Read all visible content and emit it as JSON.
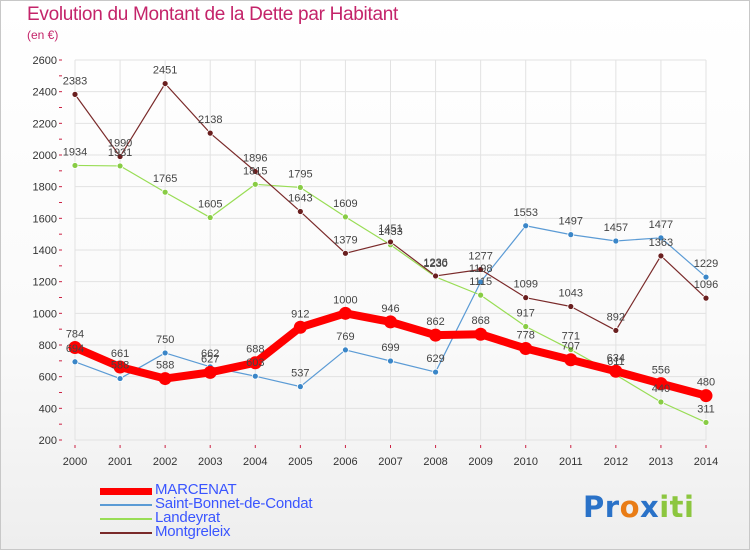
{
  "header": {
    "title": "Evolution du Montant de la Dette par Habitant",
    "subtitle": "(en €)"
  },
  "logo": {
    "parts": [
      "Pr",
      "o",
      "x",
      "iti"
    ]
  },
  "chart_data": {
    "type": "line",
    "title": "Evolution du Montant de la Dette par Habitant",
    "subtitle": "(en €)",
    "xlabel": "",
    "ylabel": "",
    "categories": [
      "2000",
      "2001",
      "2002",
      "2003",
      "2004",
      "2005",
      "2006",
      "2007",
      "2008",
      "2009",
      "2010",
      "2011",
      "2012",
      "2013",
      "2014"
    ],
    "y_ticks": [
      200,
      400,
      600,
      800,
      1000,
      1200,
      1400,
      1600,
      1800,
      2000,
      2200,
      2400,
      2600
    ],
    "ylim": [
      200,
      2600
    ],
    "grid": "horizontal",
    "legend_position": "bottom-left",
    "series": [
      {
        "name": "MARCENAT",
        "color": "#ff0000",
        "values": [
          784,
          661,
          588,
          627,
          688,
          912,
          1000,
          946,
          862,
          868,
          778,
          707,
          634,
          556,
          480
        ]
      },
      {
        "name": "Saint-Bonnet-de-Condat",
        "color": "#5b9bd5",
        "values": [
          694,
          588,
          750,
          662,
          603,
          537,
          769,
          699,
          629,
          1198,
          1553,
          1497,
          1457,
          1477,
          1229
        ]
      },
      {
        "name": "Landeyrat",
        "color": "#99dd55",
        "values": [
          1934,
          1931,
          1765,
          1605,
          1815,
          1795,
          1609,
          1433,
          1230,
          1115,
          917,
          771,
          611,
          440,
          311
        ]
      },
      {
        "name": "Montgreleix",
        "color": "#7a2a2a",
        "values": [
          2383,
          1990,
          2451,
          2138,
          1896,
          1643,
          1379,
          1451,
          1236,
          1277,
          1099,
          1043,
          892,
          1363,
          1096
        ]
      }
    ],
    "data_labels": [
      {
        "series": 0,
        "labels": [
          "784",
          "661",
          "588",
          "627",
          "688",
          "912",
          "1000",
          "946",
          "862",
          "868",
          "778",
          "707",
          "634",
          "556",
          "480"
        ]
      },
      {
        "series": 1,
        "labels": [
          "694",
          "588",
          "750",
          "662",
          "603",
          "537",
          "769",
          "699",
          "629",
          "1198",
          "1553",
          "1497",
          "1457",
          "1477",
          "1229"
        ]
      },
      {
        "series": 2,
        "labels": [
          "1934",
          "1931",
          "1765",
          "1605",
          "1815",
          "1795",
          "1609",
          "1433",
          "1230",
          "1115",
          "917",
          "771",
          "611",
          "440",
          "311"
        ]
      },
      {
        "series": 3,
        "labels": [
          "2383",
          "1990",
          "2451",
          "2138",
          "1896",
          "1643",
          "1379",
          "1451",
          "1236",
          "1277",
          "1099",
          "1043",
          "892",
          "1363",
          "1096"
        ]
      }
    ]
  }
}
